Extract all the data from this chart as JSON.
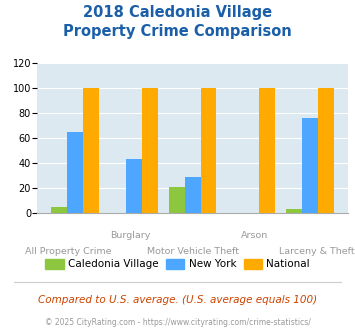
{
  "title": "2018 Caledonia Village\nProperty Crime Comparison",
  "groups": [
    "All Property Crime",
    "Burglary",
    "Motor Vehicle Theft",
    "Arson",
    "Larceny & Theft"
  ],
  "cal_values": [
    5,
    0,
    21,
    0,
    3
  ],
  "ny_values": [
    65,
    43,
    29,
    0,
    76
  ],
  "nat_values": [
    100,
    100,
    100,
    100,
    100
  ],
  "color_cal": "#8dc63f",
  "color_ny": "#4da6ff",
  "color_nat": "#ffaa00",
  "ylim": [
    0,
    120
  ],
  "yticks": [
    0,
    20,
    40,
    60,
    80,
    100,
    120
  ],
  "title_color": "#1a5fa8",
  "title_fontsize": 10.5,
  "bg_color": "#dce9f0",
  "label_color": "#999999",
  "footer_text": "Compared to U.S. average. (U.S. average equals 100)",
  "copyright_text": "© 2025 CityRating.com - https://www.cityrating.com/crime-statistics/",
  "legend_labels": [
    "Caledonia Village",
    "New York",
    "National"
  ],
  "top_labels": {
    "1": "Burglary",
    "3": "Arson"
  },
  "bottom_labels": {
    "0": "All Property Crime",
    "2": "Motor Vehicle Theft",
    "4": "Larceny & Theft"
  }
}
